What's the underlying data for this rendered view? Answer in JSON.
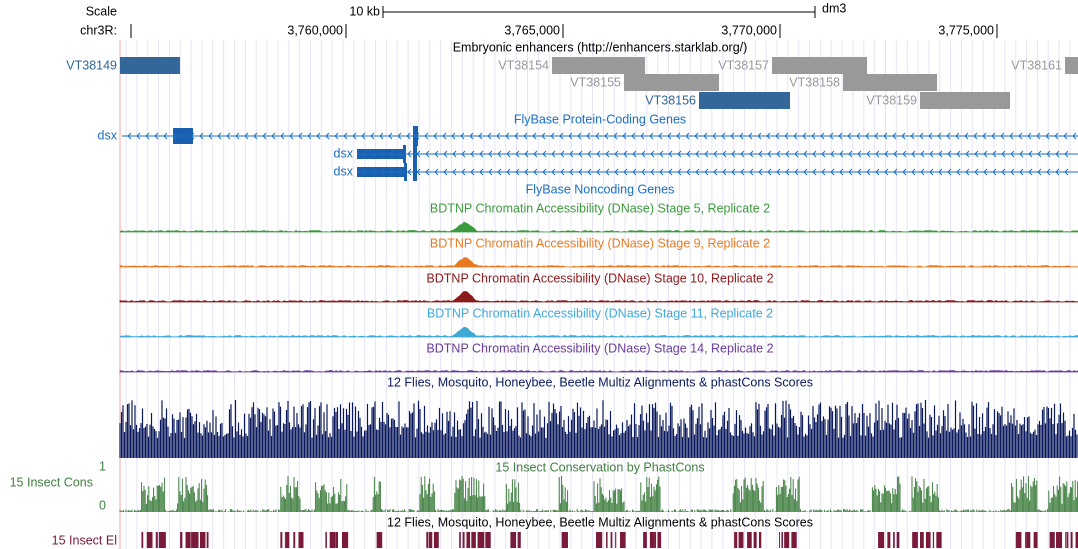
{
  "header": {
    "scale_label": "Scale",
    "scale_bar_label": "10 kb",
    "assembly": "dm3",
    "chrom_label": "chr3R:"
  },
  "ruler": {
    "xlim": [
      3754793,
      3776866
    ],
    "xticks": [
      {
        "value": 3760000,
        "label": "3,760,000"
      },
      {
        "value": 3765000,
        "label": "3,765,000"
      },
      {
        "value": 3770000,
        "label": "3,770,000"
      },
      {
        "value": 3775000,
        "label": "3,775,000"
      }
    ]
  },
  "enhancers": {
    "title": "Embryonic enhancers (http://enhancers.starklab.org/)",
    "features": [
      {
        "name": "VT38149",
        "start": 3754793,
        "end": 3756175,
        "row": 0,
        "color": "#336699"
      },
      {
        "name": "VT38154",
        "start": 3764747,
        "end": 3766889,
        "row": 0,
        "color": "#999999"
      },
      {
        "name": "VT38157",
        "start": 3769816,
        "end": 3772005,
        "row": 0,
        "color": "#999999"
      },
      {
        "name": "VT38161",
        "start": 3776567,
        "end": 3776866,
        "row": 0,
        "color": "#999999"
      },
      {
        "name": "VT38155",
        "start": 3766406,
        "end": 3768595,
        "row": 1,
        "color": "#999999"
      },
      {
        "name": "VT38158",
        "start": 3771452,
        "end": 3773618,
        "row": 1,
        "color": "#999999"
      },
      {
        "name": "VT38156",
        "start": 3768134,
        "end": 3770230,
        "row": 2,
        "color": "#336699"
      },
      {
        "name": "VT38159",
        "start": 3773226,
        "end": 3775300,
        "row": 2,
        "color": "#999999"
      }
    ]
  },
  "genes": {
    "title": "FlyBase Protein-Coding Genes",
    "rows": [
      "dsx",
      "dsx",
      "dsx"
    ],
    "noncoding_title": "FlyBase Noncoding Genes"
  },
  "tracks": [
    {
      "title": "BDTNP Chromatin Accessibility (DNase) Stage 5, Replicate 2",
      "color": "#3c9b3c"
    },
    {
      "title": "BDTNP Chromatin Accessibility (DNase) Stage 9, Replicate 2",
      "color": "#e87b22"
    },
    {
      "title": "BDTNP Chromatin Accessibility (DNase) Stage 10, Replicate 2",
      "color": "#8b1a1a"
    },
    {
      "title": "BDTNP Chromatin Accessibility (DNase) Stage 11, Replicate 2",
      "color": "#3fa9d6"
    },
    {
      "title": "BDTNP Chromatin Accessibility (DNase) Stage 14, Replicate 2",
      "color": "#6a3d9a"
    }
  ],
  "conservation": {
    "multiz_title": "12 Flies, Mosquito, Honeybee, Beetle Multiz Alignments & phastCons Scores",
    "multiz_color": "#0b1a5e",
    "phastcons_title": "15 Insect Conservation by PhastCons",
    "phastcons_label": "15 Insect Cons",
    "phastcons_color": "#3f7f3f",
    "ymax": "1",
    "ymin": "0",
    "elements_title": "12 Flies, Mosquito, Honeybee, Beetle Multiz Alignments & phastCons Scores",
    "elements_label": "15 Insect El",
    "elements_color": "#7a1a3a"
  }
}
